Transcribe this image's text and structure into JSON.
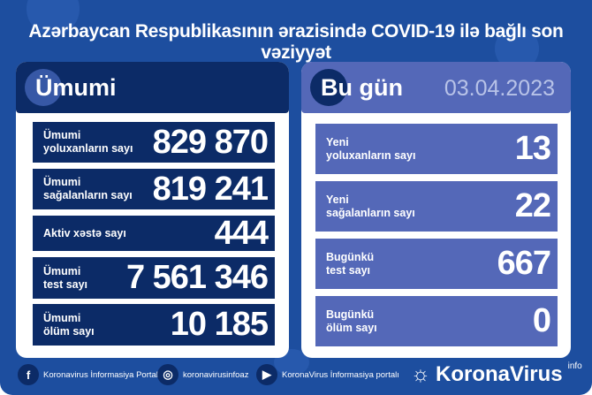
{
  "title": "Azərbaycan Respublikasının ərazisində COVID-19 ilə bağlı son vəziyyət",
  "left": {
    "heading": "Ümumi",
    "rows": [
      {
        "label": "Ümumi\nyoluxanların sayı",
        "value": "829 870"
      },
      {
        "label": "Ümumi\nsağalanların sayı",
        "value": "819 241"
      },
      {
        "label": "Aktiv xəstə sayı",
        "value": "444"
      },
      {
        "label": "Ümumi\ntest sayı",
        "value": "7 561 346"
      },
      {
        "label": "Ümumi\nölüm sayı",
        "value": "10 185"
      }
    ]
  },
  "right": {
    "heading": "Bu gün",
    "date": "03.04.2023",
    "rows": [
      {
        "label": "Yeni\nyoluxanların sayı",
        "value": "13"
      },
      {
        "label": "Yeni\nsağalanların sayı",
        "value": "22"
      },
      {
        "label": "Bugünkü\ntest sayı",
        "value": "667"
      },
      {
        "label": "Bugünkü\nölüm sayı",
        "value": "0"
      }
    ]
  },
  "footer": {
    "facebook": "Koronavirus İnformasiya Portalı",
    "instagram": "koronavirusinfoaz",
    "youtube": "KoronaVirus İnformasiya portalı",
    "brand": "KoronaVirus",
    "brand_sup": "info"
  },
  "colors": {
    "background": "#1d4e9f",
    "navy": "#0c2b67",
    "periwinkle": "#5468b8"
  }
}
